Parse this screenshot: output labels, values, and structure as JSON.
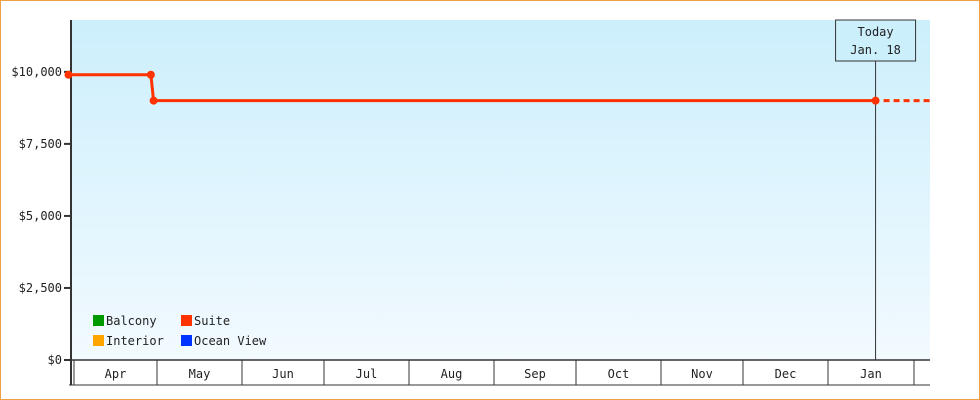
{
  "chart_data": {
    "type": "line",
    "step": true,
    "title": "",
    "xlabel": "",
    "ylabel": "",
    "ylim": [
      0,
      11800
    ],
    "yticks": [
      0,
      2500,
      5000,
      7500,
      10000
    ],
    "ytick_labels": [
      "$0",
      "$2,500",
      "$5,000",
      "$7,500",
      "$10,000"
    ],
    "x_categories": [
      "Apr",
      "May",
      "Jun",
      "Jul",
      "Aug",
      "Sep",
      "Oct",
      "Nov",
      "Dec",
      "Jan"
    ],
    "legend": {
      "placement": "bottom-left",
      "entries": [
        {
          "name": "Balcony",
          "color": "#009900"
        },
        {
          "name": "Suite",
          "color": "#ff3300"
        },
        {
          "name": "Interior",
          "color": "#ffa500"
        },
        {
          "name": "Ocean View",
          "color": "#0033ff"
        }
      ]
    },
    "series": [
      {
        "name": "Suite",
        "color": "#ff3300",
        "points": [
          {
            "x": "Mar 30",
            "y": 9900
          },
          {
            "x": "Apr 29",
            "y": 9900
          },
          {
            "x": "Apr 30",
            "y": 9000
          },
          {
            "x": "Jan 18",
            "y": 9000
          }
        ],
        "projection": "dotted"
      },
      {
        "name": "Balcony",
        "color": "#009900",
        "points": []
      },
      {
        "name": "Interior",
        "color": "#ffa500",
        "points": []
      },
      {
        "name": "Ocean View",
        "color": "#0033ff",
        "points": []
      }
    ],
    "today_marker": {
      "line1": "Today",
      "line2": "Jan. 18",
      "x": "Jan 18"
    },
    "background": {
      "top": "#cceffc",
      "bottom": "#f2faff"
    },
    "grid": false
  }
}
